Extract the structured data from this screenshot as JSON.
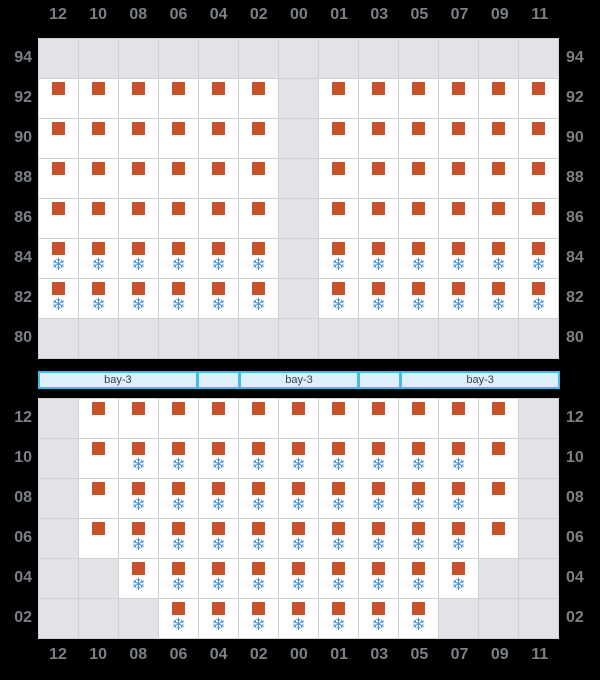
{
  "colors": {
    "background": "#000000",
    "axis_label": "#7b7f86",
    "grid_line": "#cfcfd4",
    "cell_background": "#ffffff",
    "blocked_cell": "#e3e3e7",
    "container": "#c5522b",
    "reefer": "#4e95da",
    "bay_border": "#45b8ec",
    "bay_fill": "#dceffb",
    "bay_text": "#3c4248"
  },
  "icons": {
    "container_icon": "orange-square",
    "snowflake_icon": "snowflake",
    "snowflake_glyph": "❄"
  },
  "legend": {
    "B": "blocked",
    "C": "container",
    "R": "container-with-reefer"
  },
  "top_axis": {
    "labels": [
      "12",
      "10",
      "08",
      "06",
      "04",
      "02",
      "00",
      "01",
      "03",
      "05",
      "07",
      "09",
      "11"
    ]
  },
  "bottom_axis": {
    "labels": [
      "12",
      "10",
      "08",
      "06",
      "04",
      "02",
      "00",
      "01",
      "03",
      "05",
      "07",
      "09",
      "11"
    ]
  },
  "top_grid": {
    "row_labels": [
      "94",
      "92",
      "90",
      "88",
      "86",
      "84",
      "82",
      "80"
    ],
    "rows": [
      "BBBBBBBBBBBBB",
      "CCCCCCBCCCCCC",
      "CCCCCCBCCCCCC",
      "CCCCCCBCCCCCC",
      "CCCCCCBCCCCCC",
      "RRRRRRBRRRRRR",
      "RRRRRRBRRRRRR",
      "BBBBBBBBBBBBB"
    ]
  },
  "bottom_grid": {
    "row_labels": [
      "12",
      "10",
      "08",
      "06",
      "04",
      "02"
    ],
    "rows": [
      "BCCCCCCCCCCCB",
      "BCRRRRRRRRRCB",
      "BCRRRRRRRRRCB",
      "BCRRRRRRRRRCB",
      "BBRRRRRRRRRBB",
      "BBBRRRRRRRBBB"
    ]
  },
  "bay_bar": {
    "segments": [
      {
        "label": "bay-3",
        "weight": 160
      },
      {
        "label": "",
        "weight": 40
      },
      {
        "label": "bay-3",
        "weight": 120
      },
      {
        "label": "",
        "weight": 40
      },
      {
        "label": "bay-3",
        "weight": 160
      }
    ]
  }
}
